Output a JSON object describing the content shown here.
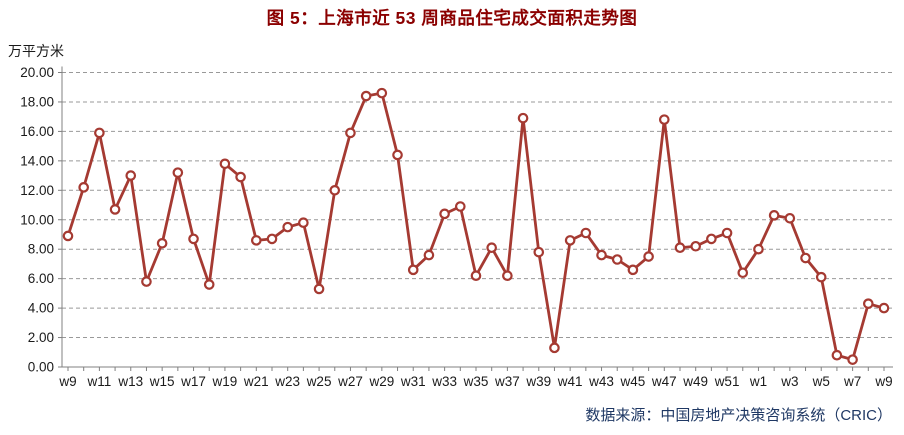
{
  "colors": {
    "background": "#FFFFFF",
    "title_color": "#8B0000",
    "line_color": "#A53A32",
    "marker_fill": "#FFFFFF",
    "grid_color": "#999999",
    "axis_color": "#808080",
    "text_color": "#1A1A1A",
    "source_color": "#1F3864"
  },
  "chart_data": {
    "type": "line",
    "title": "图 5：上海市近 53 周商品住宅成交面积走势图",
    "unit_label": "万平方米",
    "source": "数据来源：中国房地产决策咨询系统（CRIC）",
    "ylabel": "万平方米",
    "xlabel": "",
    "ylim": [
      0,
      20
    ],
    "y_tick_step": 2,
    "y_tick_format": "0.00",
    "grid": "horizontal-dashed",
    "legend": "none",
    "marker": "open-circle",
    "x_tick_every": 2,
    "x": [
      "w9",
      "w10",
      "w11",
      "w12",
      "w13",
      "w14",
      "w15",
      "w16",
      "w17",
      "w18",
      "w19",
      "w20",
      "w21",
      "w22",
      "w23",
      "w24",
      "w25",
      "w26",
      "w27",
      "w28",
      "w29",
      "w30",
      "w31",
      "w32",
      "w33",
      "w34",
      "w35",
      "w36",
      "w37",
      "w38",
      "w39",
      "w40",
      "w41",
      "w42",
      "w43",
      "w44",
      "w45",
      "w46",
      "w47",
      "w48",
      "w49",
      "w50",
      "w51",
      "w52",
      "w1",
      "w2",
      "w3",
      "w4",
      "w5",
      "w6",
      "w7",
      "w8",
      "w9"
    ],
    "values": [
      8.9,
      12.2,
      15.9,
      10.7,
      13.0,
      5.8,
      8.4,
      13.2,
      8.7,
      5.6,
      13.8,
      12.9,
      8.6,
      8.7,
      9.5,
      9.8,
      5.3,
      12.0,
      15.9,
      18.4,
      18.6,
      14.4,
      6.6,
      7.6,
      10.4,
      10.9,
      6.2,
      8.1,
      6.2,
      16.9,
      7.8,
      1.3,
      8.6,
      9.1,
      7.6,
      7.3,
      6.6,
      7.5,
      16.8,
      8.1,
      8.2,
      8.7,
      9.1,
      6.4,
      8.0,
      10.3,
      10.1,
      7.4,
      6.1,
      0.8,
      0.5,
      4.3,
      4.0
    ]
  }
}
